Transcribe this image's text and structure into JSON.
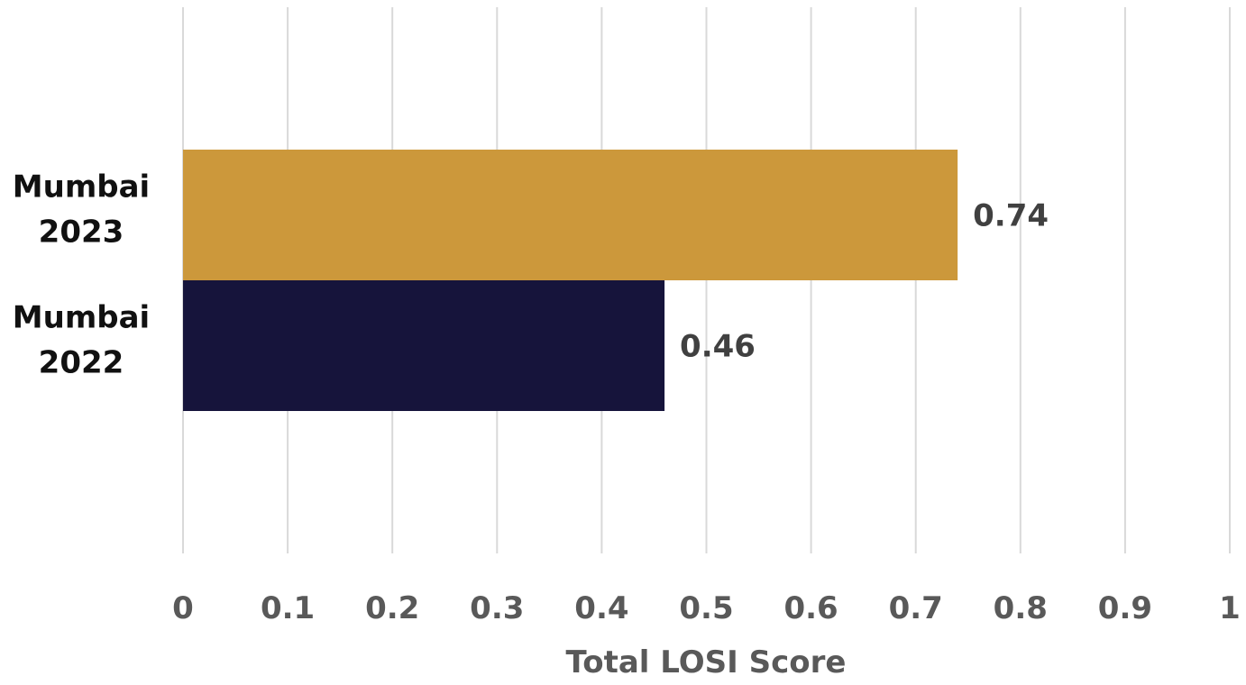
{
  "chart_data": {
    "type": "bar",
    "orientation": "horizontal",
    "title": "",
    "xlabel": "Total LOSI Score",
    "ylabel": "",
    "xlim": [
      0,
      1
    ],
    "x_ticks": [
      0,
      0.1,
      0.2,
      0.3,
      0.4,
      0.5,
      0.6,
      0.7,
      0.8,
      0.9,
      1
    ],
    "x_tick_labels": [
      "0",
      "0.1",
      "0.2",
      "0.3",
      "0.4",
      "0.5",
      "0.6",
      "0.7",
      "0.8",
      "0.9",
      "1"
    ],
    "grid": "vertical",
    "legend": "none",
    "categories": [
      {
        "lines": [
          "Mumbai",
          "2023"
        ],
        "value": 0.74,
        "value_label": "0.74",
        "color": "#cc983b"
      },
      {
        "lines": [
          "Mumbai",
          "2022"
        ],
        "value": 0.46,
        "value_label": "0.46",
        "color": "#16143b"
      }
    ]
  }
}
